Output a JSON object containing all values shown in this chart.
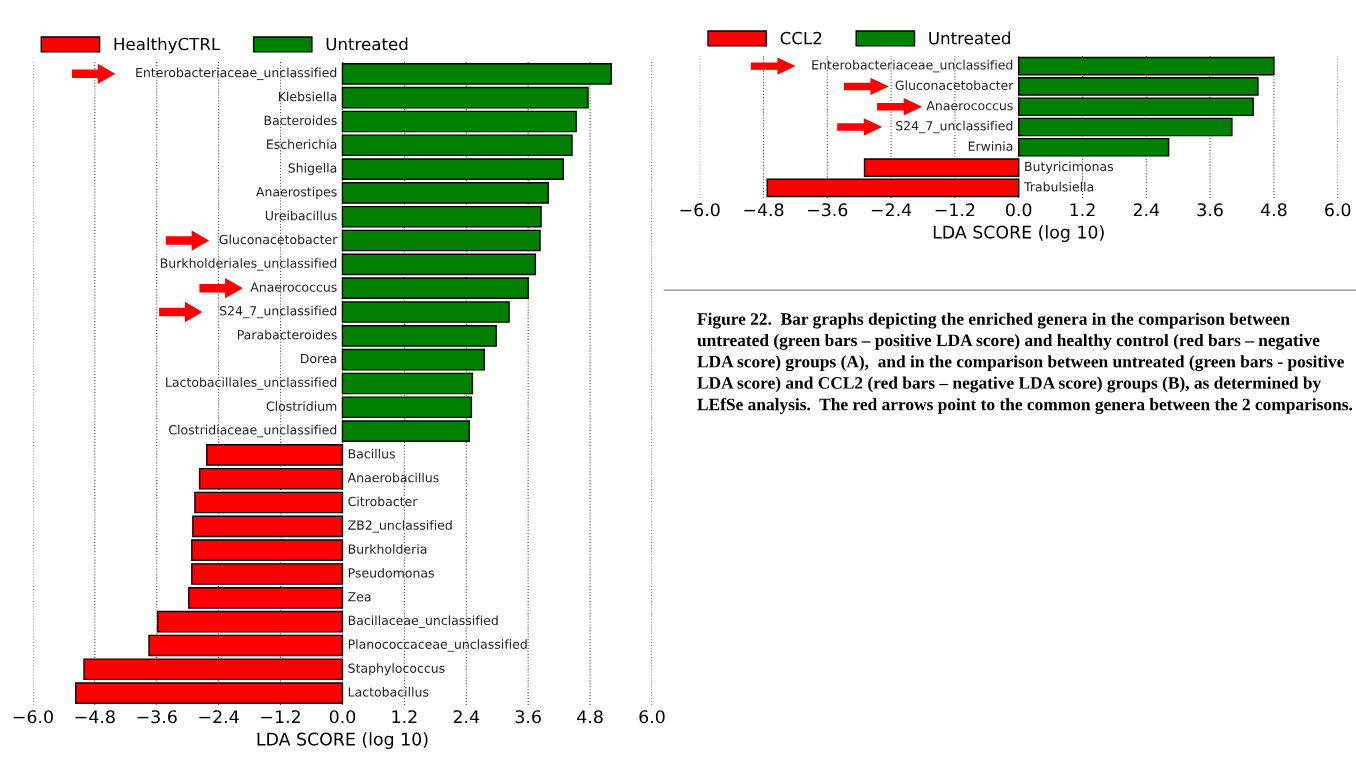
{
  "chart_data": [
    {
      "type": "bar",
      "orientation": "horizontal",
      "xlabel": "LDA SCORE (log 10)",
      "legend": "top left",
      "grid": "x",
      "xlim": [
        -6.0,
        6.0
      ],
      "xticks": [
        {
          "value": -6.0,
          "label": "−6.0"
        },
        {
          "value": -4.8,
          "label": "−4.8"
        },
        {
          "value": -3.6,
          "label": "−3.6"
        },
        {
          "value": -2.4,
          "label": "−2.4"
        },
        {
          "value": -1.2,
          "label": "−1.2"
        },
        {
          "value": 0,
          "label": "0.0"
        },
        {
          "value": 1.2,
          "label": "1.2"
        },
        {
          "value": 2.4,
          "label": "2.4"
        },
        {
          "value": 3.6,
          "label": "3.6"
        },
        {
          "value": 4.8,
          "label": "4.8"
        },
        {
          "value": 6.0,
          "label": "6.0"
        }
      ],
      "categories": [
        "Enterobacteriaceae_unclassified",
        "Klebsiella",
        "Bacteroides",
        "Escherichia",
        "Shigella",
        "Anaerostipes",
        "Ureibacillus",
        "Gluconacetobacter",
        "Burkholderiales_unclassified",
        "Anaerococcus",
        "S24_7_unclassified",
        "Parabacteroides",
        "Dorea",
        "Lactobacillales_unclassified",
        "Clostridium",
        "Clostridiaceae_unclassified",
        "Bacillus",
        "Anaerobacillus",
        "Citrobacter",
        "ZB2_unclassified",
        "Burkholderia",
        "Pseudomonas",
        "Zea",
        "Bacillaceae_unclassified",
        "Planococcaceae_unclassified",
        "Staphylococcus",
        "Lactobacillus"
      ],
      "series": [
        {
          "name": "HealthyCTRL",
          "color": "#ff0000",
          "values": [
            null,
            null,
            null,
            null,
            null,
            null,
            null,
            null,
            null,
            null,
            null,
            null,
            null,
            null,
            null,
            null,
            -2.63,
            -2.77,
            -2.86,
            -2.9,
            -2.92,
            -2.92,
            -2.98,
            -3.58,
            -3.75,
            -5.01,
            -5.17
          ]
        },
        {
          "name": "Untreated",
          "color": "#008000",
          "values": [
            5.21,
            4.76,
            4.53,
            4.45,
            4.28,
            3.99,
            3.85,
            3.83,
            3.74,
            3.6,
            3.23,
            2.98,
            2.75,
            2.52,
            2.5,
            2.46,
            null,
            null,
            null,
            null,
            null,
            null,
            null,
            null,
            null,
            null,
            null
          ]
        }
      ]
    },
    {
      "type": "bar",
      "orientation": "horizontal",
      "xlabel": "LDA SCORE (log 10)",
      "legend": "top left",
      "grid": "x",
      "xlim": [
        -6.0,
        6.0
      ],
      "xticks": [
        {
          "value": -6.0,
          "label": "−6.0"
        },
        {
          "value": -4.8,
          "label": "−4.8"
        },
        {
          "value": -3.6,
          "label": "−3.6"
        },
        {
          "value": -2.4,
          "label": "−2.4"
        },
        {
          "value": -1.2,
          "label": "−1.2"
        },
        {
          "value": 0,
          "label": "0.0"
        },
        {
          "value": 1.2,
          "label": "1.2"
        },
        {
          "value": 2.4,
          "label": "2.4"
        },
        {
          "value": 3.6,
          "label": "3.6"
        },
        {
          "value": 4.8,
          "label": "4.8"
        },
        {
          "value": 6.0,
          "label": "6.0"
        }
      ],
      "categories": [
        "Enterobacteriaceae_unclassified",
        "Gluconacetobacter",
        "Anaerococcus",
        "S24_7_unclassified",
        "Erwinia",
        "Butyricimonas",
        "Trabulsiella"
      ],
      "series": [
        {
          "name": "CCL2",
          "color": "#ff0000",
          "values": [
            null,
            null,
            null,
            null,
            null,
            -2.9,
            -4.73
          ]
        },
        {
          "name": "Untreated",
          "color": "#008000",
          "values": [
            4.8,
            4.5,
            4.41,
            4.01,
            2.82,
            null,
            null
          ]
        }
      ],
      "annotations": [
        "Figure 22.  Bar graphs depicting the enriched genera in the comparison between untreated (green bars – positive LDA score) and healthy control (red bars – negative LDA score) groups (A),  and in the comparison between untreated (green bars - positive LDA score) and CCL2 (red bars – negative LDA score) groups (B), as determined by LEfSe analysis.  The red arrows point to the common genera between the 2 comparisons."
      ]
    }
  ]
}
